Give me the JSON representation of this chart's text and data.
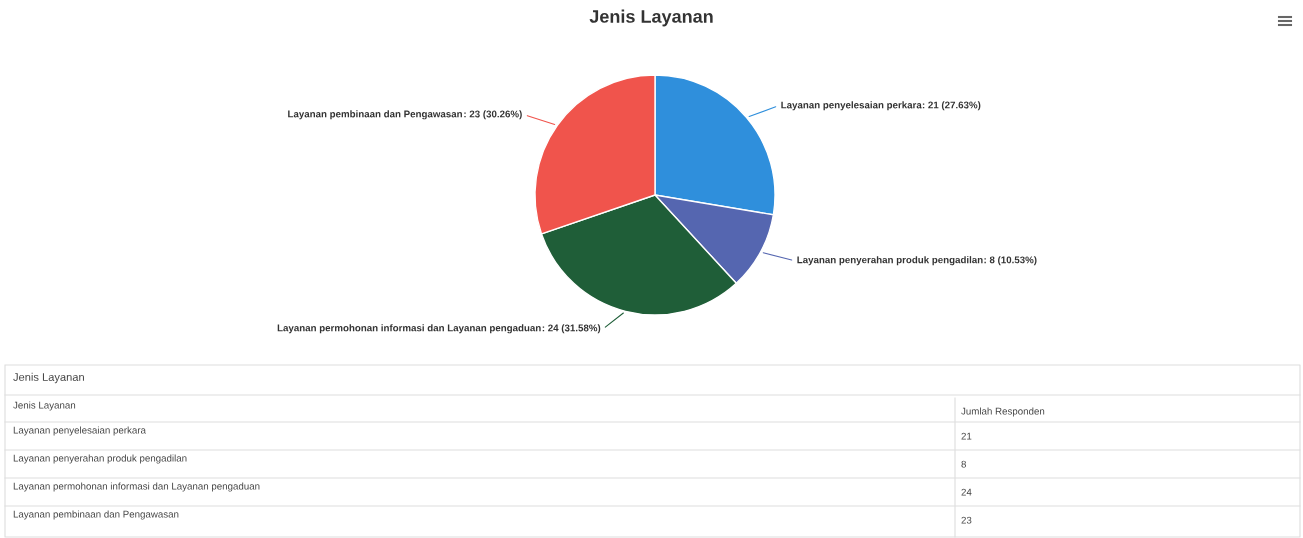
{
  "chart_data": {
    "type": "pie",
    "title": "Jenis Layanan",
    "categories": [
      "Layanan penyelesaian perkara",
      "Layanan penyerahan produk pengadilan",
      "Layanan permohonan informasi dan Layanan pengaduan",
      "Layanan pembinaan dan Pengawasan"
    ],
    "values": [
      21,
      8,
      24,
      23
    ],
    "colors": [
      "#2f8fdc",
      "#5566b0",
      "#1f5e38",
      "#f0544c"
    ],
    "value_labels": [
      ": 21 (27.63%)",
      ": 8 (10.53%)",
      ": 24 (31.58%)",
      ": 23 (30.26%)"
    ],
    "annotations": [
      "Jenis Layanan",
      "Jenis Layanan",
      "Jumlah Responden",
      "Layanan penyelesaian perkara",
      "21",
      "Layanan penyerahan produk pengadilan",
      "8",
      "Layanan permohonan informasi dan Layanan pengaduan",
      "24",
      "Layanan pembinaan dan Pengawasan",
      "23"
    ]
  }
}
